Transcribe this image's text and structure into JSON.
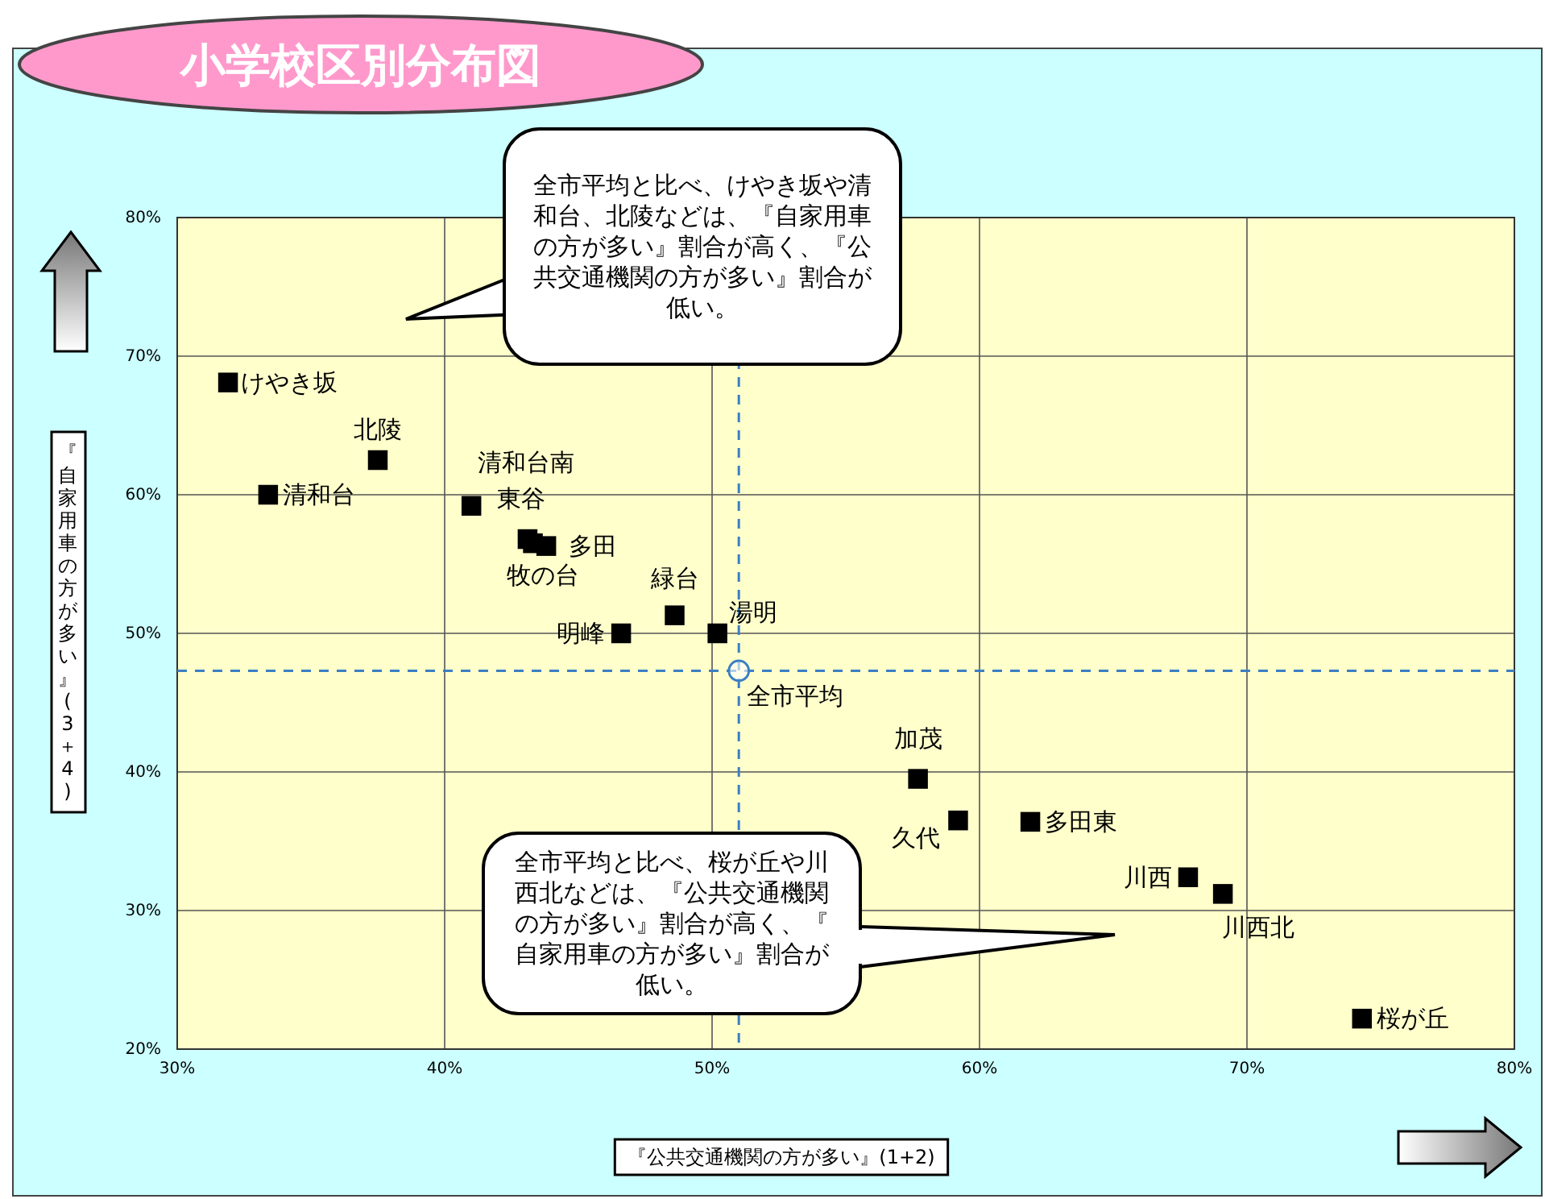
{
  "chart_data": {
    "type": "scatter",
    "title": "小学校区別分布図",
    "xlabel": "『公共交通機関の方が多い』(1+2)",
    "ylabel": "『自家用車の方が多い』(3＋4)",
    "xlim": [
      30,
      80
    ],
    "ylim": [
      20,
      80
    ],
    "xticks": [
      {
        "value": 30,
        "label": "30%"
      },
      {
        "value": 40,
        "label": "40%"
      },
      {
        "value": 50,
        "label": "50%"
      },
      {
        "value": 60,
        "label": "60%"
      },
      {
        "value": 70,
        "label": "70%"
      },
      {
        "value": 80,
        "label": "80%"
      }
    ],
    "yticks": [
      {
        "value": 20,
        "label": "20%"
      },
      {
        "value": 30,
        "label": "30%"
      },
      {
        "value": 40,
        "label": "40%"
      },
      {
        "value": 50,
        "label": "50%"
      },
      {
        "value": 60,
        "label": "60%"
      },
      {
        "value": 70,
        "label": "70%"
      },
      {
        "value": 80,
        "label": "80%"
      }
    ],
    "grid": true,
    "series": [
      {
        "color": "#000000",
        "marker": "square",
        "x": [
          31.9,
          37.5,
          33.4,
          41.0,
          43.1,
          43.8,
          43.3,
          46.6,
          48.6,
          50.2,
          57.7,
          59.2,
          61.9,
          67.8,
          69.1,
          74.3
        ],
        "values": [
          68.1,
          62.5,
          60.0,
          59.2,
          56.8,
          56.3,
          56.5,
          50.0,
          51.3,
          50.0,
          39.5,
          36.5,
          36.4,
          32.4,
          31.2,
          22.2
        ]
      },
      {
        "name": "全市平均",
        "color": "#3a7fc4",
        "marker": "circle",
        "x": [
          51.0
        ],
        "values": [
          47.3
        ]
      }
    ],
    "ref_lines": [
      {
        "axis": "x",
        "value": 51.0,
        "color": "#3a7fc4",
        "line_style": "dashed"
      },
      {
        "axis": "y",
        "value": 47.3,
        "color": "#3a7fc4",
        "line_style": "dashed"
      }
    ],
    "annotations": [
      "全市平均と比べ、けやき坂や清和台、北陵などは、『自家用車の方が多い』割合が高く、『公共交通機関の方が多い』割合が低い。",
      "全市平均と比べ、桜が丘や川西北などは、『公共交通機関の方が多い』割合が高く、『自家用車の方が多い』割合が低い。",
      {
        "text": "けやき坂",
        "x": 31.9,
        "y": 68.1
      },
      {
        "text": "北陵",
        "x": 37.5,
        "y": 62.5
      },
      {
        "text": "清和台",
        "x": 33.4,
        "y": 60.0
      },
      {
        "text": "清和台南",
        "x": 41.0,
        "y": 59.2
      },
      {
        "text": "東谷",
        "x": 43.1,
        "y": 56.8
      },
      {
        "text": "多田",
        "x": 43.8,
        "y": 56.3
      },
      {
        "text": "牧の台",
        "x": 43.3,
        "y": 56.5
      },
      {
        "text": "明峰",
        "x": 46.6,
        "y": 50.0
      },
      {
        "text": "緑台",
        "x": 48.6,
        "y": 51.3
      },
      {
        "text": "湯明",
        "x": 50.2,
        "y": 50.0
      },
      {
        "text": "加茂",
        "x": 57.7,
        "y": 39.5
      },
      {
        "text": "久代",
        "x": 59.2,
        "y": 36.5
      },
      {
        "text": "多田東",
        "x": 61.9,
        "y": 36.4
      },
      {
        "text": "川西",
        "x": 67.8,
        "y": 32.4
      },
      {
        "text": "川西北",
        "x": 69.1,
        "y": 31.2
      },
      {
        "text": "桜が丘",
        "x": 74.3,
        "y": 22.2
      }
    ]
  }
}
